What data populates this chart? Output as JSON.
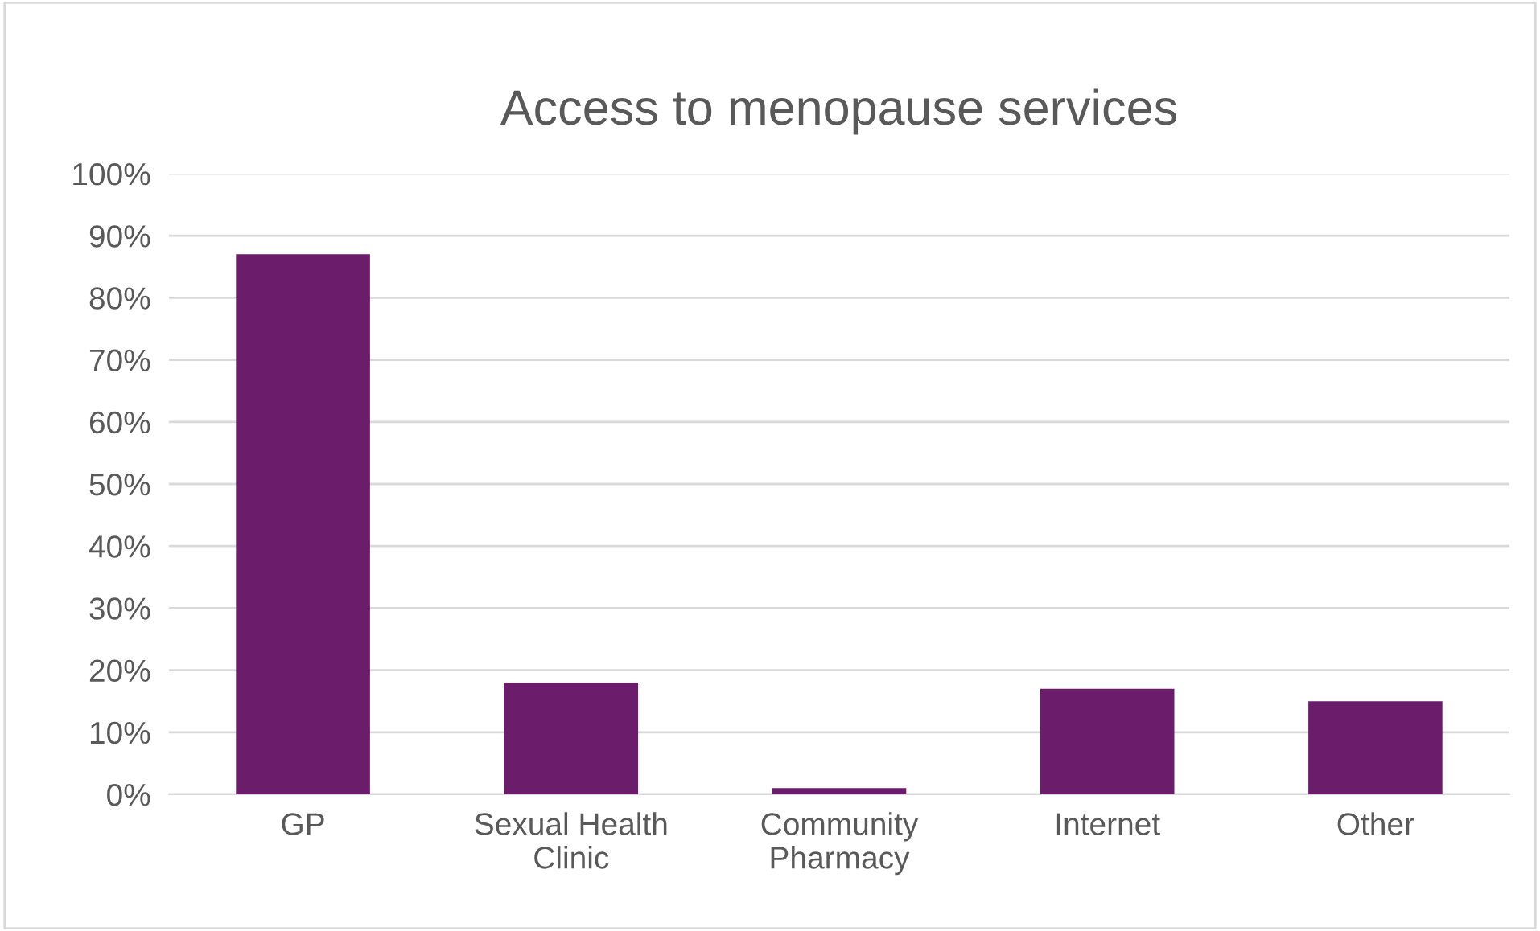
{
  "chart_data": {
    "type": "bar",
    "title": "Access to menopause services",
    "categories": [
      "GP",
      "Sexual Health Clinic",
      "Community Pharmacy",
      "Internet",
      "Other"
    ],
    "values": [
      87,
      18,
      1,
      17,
      15
    ],
    "color": "#6b1d6b",
    "ylim": [
      0,
      100
    ],
    "yticks": [
      {
        "value": 0,
        "label": "0%"
      },
      {
        "value": 10,
        "label": "10%"
      },
      {
        "value": 20,
        "label": "20%"
      },
      {
        "value": 30,
        "label": "30%"
      },
      {
        "value": 40,
        "label": "40%"
      },
      {
        "value": 50,
        "label": "50%"
      },
      {
        "value": 60,
        "label": "60%"
      },
      {
        "value": 70,
        "label": "70%"
      },
      {
        "value": 80,
        "label": "80%"
      },
      {
        "value": 90,
        "label": "90%"
      },
      {
        "value": 100,
        "label": "100%"
      }
    ],
    "grid": "y",
    "legend": false
  }
}
